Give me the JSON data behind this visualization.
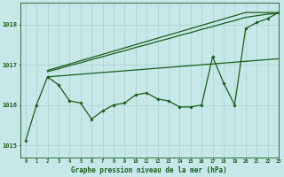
{
  "title": "Graphe pression niveau de la mer (hPa)",
  "background_color": "#c6e8e8",
  "grid_color": "#aad0d0",
  "line_color": "#1a5c1a",
  "xlim": [
    -0.5,
    23
  ],
  "ylim": [
    1014.7,
    1018.55
  ],
  "yticks": [
    1015,
    1016,
    1017,
    1018
  ],
  "xticks": [
    0,
    1,
    2,
    3,
    4,
    5,
    6,
    7,
    8,
    9,
    10,
    11,
    12,
    13,
    14,
    15,
    16,
    17,
    18,
    19,
    20,
    21,
    22,
    23
  ],
  "hours": [
    0,
    1,
    2,
    3,
    4,
    5,
    6,
    7,
    8,
    9,
    10,
    11,
    12,
    13,
    14,
    15,
    16,
    17,
    18,
    19,
    20,
    21,
    22,
    23
  ],
  "main_line": [
    1015.1,
    1016.0,
    1016.7,
    1016.5,
    1016.1,
    1016.05,
    1015.65,
    1015.85,
    1016.0,
    1016.05,
    1016.25,
    1016.3,
    1016.15,
    1016.1,
    1015.95,
    1015.95,
    1016.0,
    1017.2,
    1016.55,
    1016.0,
    1017.9,
    1018.05,
    1018.15,
    1018.3
  ],
  "tri_top_line": [
    1016.7,
    1016.78,
    1016.86,
    1016.94,
    1017.02,
    1017.1,
    1017.18,
    1017.26,
    1017.34,
    1017.42,
    1017.5,
    1017.58,
    1017.66,
    1017.74,
    1017.82,
    1017.9,
    1017.98,
    1018.06,
    1018.14,
    1018.22,
    1018.3,
    1018.3,
    1018.3,
    1018.3
  ],
  "tri_top_line2": [
    1016.68,
    1016.75,
    1016.83,
    1016.9,
    1016.98,
    1017.05,
    1017.13,
    1017.2,
    1017.28,
    1017.35,
    1017.43,
    1017.5,
    1017.58,
    1017.65,
    1017.73,
    1017.8,
    1017.88,
    1017.95,
    1018.03,
    1018.1,
    1018.18,
    1018.22,
    1018.26,
    1018.28
  ],
  "tri_bottom_line_x": [
    2,
    23
  ],
  "tri_bottom_line_y": [
    1016.7,
    1017.15
  ],
  "figsize": [
    3.2,
    2.0
  ],
  "dpi": 100
}
